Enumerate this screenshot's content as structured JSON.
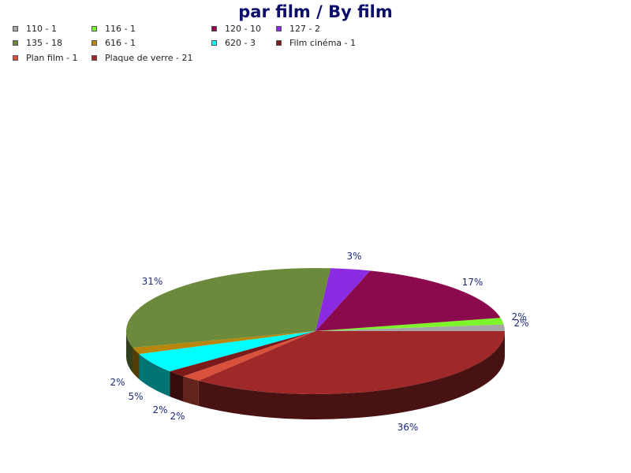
{
  "chart_data": {
    "type": "pie",
    "title": "par film / By film",
    "slices": [
      {
        "label": "110 - 1",
        "value": 1,
        "percent": "2%",
        "color": "#a6a6a6"
      },
      {
        "label": "116 - 1",
        "value": 1,
        "percent": "2%",
        "color": "#7cf52a"
      },
      {
        "label": "120 - 10",
        "value": 10,
        "percent": "17%",
        "color": "#8b0a4e"
      },
      {
        "label": "127 - 2",
        "value": 2,
        "percent": "3%",
        "color": "#8a2be2"
      },
      {
        "label": "135 - 18",
        "value": 18,
        "percent": "31%",
        "color": "#6b8a3c"
      },
      {
        "label": "616 - 1",
        "value": 1,
        "percent": "2%",
        "color": "#b8860b"
      },
      {
        "label": "620 - 3",
        "value": 3,
        "percent": "5%",
        "color": "#00ffff"
      },
      {
        "label": "Film cinéma - 1",
        "value": 1,
        "percent": "2%",
        "color": "#7a1a1a"
      },
      {
        "label": "Plan film - 1",
        "value": 1,
        "percent": "2%",
        "color": "#d9513b"
      },
      {
        "label": "Plaque de verre - 21",
        "value": 21,
        "percent": "36%",
        "color": "#a02828"
      }
    ],
    "legend_placement": "top",
    "style": "3d"
  }
}
